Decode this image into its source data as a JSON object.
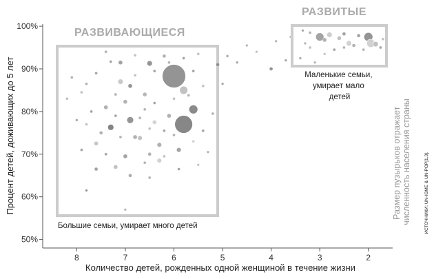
{
  "chart_data": {
    "type": "scatter",
    "xlabel": "Количество детей, рожденных одной женщиной в течение жизни",
    "ylabel": "Процент детей, доживающих до 5 лет",
    "xlim": [
      8.7,
      1.5
    ],
    "ylim": [
      48,
      100.5
    ],
    "x_ticks": [
      "8",
      "7",
      "6",
      "5",
      "4",
      "3",
      "2"
    ],
    "y_ticks": [
      "50%",
      "60%",
      "70%",
      "80%",
      "90%",
      "100%"
    ],
    "annotations": {
      "developing_title": "РАЗВИВАЮЩИЕСЯ",
      "developed_title": "РАЗВИТЫЕ",
      "developing_note": "Большие семьи, умирает много детей",
      "developed_note": [
        "Маленькие семьи,",
        "умирает мало",
        "детей"
      ],
      "bubble_size_note": [
        "Размер пузырьков отражает",
        "численность населения страны"
      ],
      "source": "ИСТОЧНИКИ: UN-IGME & UN-POP[1,3]."
    },
    "regions": [
      {
        "name": "developing",
        "x": [
          8.3,
          4.95
        ],
        "y": [
          55,
          95
        ]
      },
      {
        "name": "developed",
        "x": [
          3.5,
          1.6
        ],
        "y": [
          90,
          99.5
        ]
      }
    ],
    "points": [
      {
        "x": 6.0,
        "y": 88.3,
        "size": 17,
        "shade": "#888888"
      },
      {
        "x": 5.8,
        "y": 77.0,
        "size": 13,
        "shade": "#7a7a7a"
      },
      {
        "x": 5.6,
        "y": 80.5,
        "size": 6.5,
        "shade": "#7d7d7d"
      },
      {
        "x": 5.8,
        "y": 85.0,
        "size": 6,
        "shade": "#bbbbbb"
      },
      {
        "x": 6.9,
        "y": 78.0,
        "size": 5,
        "shade": "#8a8a8a"
      },
      {
        "x": 7.3,
        "y": 76.3,
        "size": 4.5,
        "shade": "#777777"
      },
      {
        "x": 6.5,
        "y": 91.3,
        "size": 4,
        "shade": "#888888"
      },
      {
        "x": 7.1,
        "y": 87.0,
        "size": 4,
        "shade": "#c4c4c4"
      },
      {
        "x": 6.3,
        "y": 72.2,
        "size": 3.5,
        "shade": "#aaaaaa"
      },
      {
        "x": 6.7,
        "y": 73.8,
        "size": 3.5,
        "shade": "#bdbdbd"
      },
      {
        "x": 5.9,
        "y": 71.0,
        "size": 3.5,
        "shade": "#9a9a9a"
      },
      {
        "x": 6.3,
        "y": 68.5,
        "size": 3.5,
        "shade": "#cccccc"
      },
      {
        "x": 7.1,
        "y": 91.5,
        "size": 3,
        "shade": "#999999"
      },
      {
        "x": 6.9,
        "y": 86.0,
        "size": 3,
        "shade": "#888888"
      },
      {
        "x": 7.0,
        "y": 82.3,
        "size": 3,
        "shade": "#aaaaaa"
      },
      {
        "x": 7.4,
        "y": 81.0,
        "size": 3,
        "shade": "#aaaaaa"
      },
      {
        "x": 6.6,
        "y": 84.0,
        "size": 3,
        "shade": "#b0b0b0"
      },
      {
        "x": 6.1,
        "y": 79.0,
        "size": 3,
        "shade": "#a8a8a8"
      },
      {
        "x": 6.4,
        "y": 77.5,
        "size": 3,
        "shade": "#cfcfcf"
      },
      {
        "x": 6.8,
        "y": 74.0,
        "size": 3,
        "shade": "#aaaaaa"
      },
      {
        "x": 7.6,
        "y": 72.5,
        "size": 3,
        "shade": "#c0c0c0"
      },
      {
        "x": 7.0,
        "y": 69.5,
        "size": 3,
        "shade": "#999999"
      },
      {
        "x": 6.5,
        "y": 70.0,
        "size": 2.5,
        "shade": "#aaaaaa"
      },
      {
        "x": 7.2,
        "y": 67.0,
        "size": 3,
        "shade": "#bbbbbb"
      },
      {
        "x": 6.9,
        "y": 65.0,
        "size": 2.5,
        "shade": "#a5a5a5"
      },
      {
        "x": 7.5,
        "y": 75.0,
        "size": 2.5,
        "shade": "#aaaaaa"
      },
      {
        "x": 5.1,
        "y": 91.0,
        "size": 2.5,
        "shade": "#888888"
      },
      {
        "x": 6.2,
        "y": 93.0,
        "size": 2.5,
        "shade": "#aaaaaa"
      },
      {
        "x": 5.5,
        "y": 93.5,
        "size": 2,
        "shade": "#bbbbbb"
      },
      {
        "x": 7.6,
        "y": 66.5,
        "size": 2.5,
        "shade": "#999999"
      },
      {
        "x": 7.8,
        "y": 61.5,
        "size": 1.8,
        "shade": "#888888"
      },
      {
        "x": 7.0,
        "y": 57.0,
        "size": 1.8,
        "shade": "#aaaaaa"
      },
      {
        "x": 7.3,
        "y": 91.7,
        "size": 2,
        "shade": "#999999"
      },
      {
        "x": 7.4,
        "y": 94.0,
        "size": 2,
        "shade": "#aaaaaa"
      },
      {
        "x": 6.8,
        "y": 93.2,
        "size": 2,
        "shade": "#bbbbbb"
      },
      {
        "x": 7.6,
        "y": 89.0,
        "size": 2,
        "shade": "#999999"
      },
      {
        "x": 7.8,
        "y": 86.5,
        "size": 2,
        "shade": "#aaaaaa"
      },
      {
        "x": 7.9,
        "y": 84.5,
        "size": 2,
        "shade": "#bbbbbb"
      },
      {
        "x": 7.7,
        "y": 80.0,
        "size": 2,
        "shade": "#999999"
      },
      {
        "x": 6.6,
        "y": 80.5,
        "size": 2,
        "shade": "#aaaaaa"
      },
      {
        "x": 6.4,
        "y": 82.0,
        "size": 2,
        "shade": "#999999"
      },
      {
        "x": 6.0,
        "y": 83.0,
        "size": 2,
        "shade": "#bbbbbb"
      },
      {
        "x": 5.7,
        "y": 83.8,
        "size": 2,
        "shade": "#aaaaaa"
      },
      {
        "x": 5.6,
        "y": 89.5,
        "size": 2,
        "shade": "#999999"
      },
      {
        "x": 5.4,
        "y": 86.0,
        "size": 2,
        "shade": "#bbbbbb"
      },
      {
        "x": 5.2,
        "y": 79.5,
        "size": 2,
        "shade": "#aaaaaa"
      },
      {
        "x": 5.4,
        "y": 75.5,
        "size": 2,
        "shade": "#999999"
      },
      {
        "x": 5.6,
        "y": 73.0,
        "size": 2,
        "shade": "#cccccc"
      },
      {
        "x": 6.0,
        "y": 74.5,
        "size": 2,
        "shade": "#aaaaaa"
      },
      {
        "x": 6.2,
        "y": 75.5,
        "size": 2,
        "shade": "#999999"
      },
      {
        "x": 6.5,
        "y": 76.0,
        "size": 2,
        "shade": "#bbbbbb"
      },
      {
        "x": 6.7,
        "y": 78.5,
        "size": 2,
        "shade": "#aaaaaa"
      },
      {
        "x": 7.2,
        "y": 79.0,
        "size": 2,
        "shade": "#999999"
      },
      {
        "x": 7.2,
        "y": 84.0,
        "size": 2,
        "shade": "#aaaaaa"
      },
      {
        "x": 6.8,
        "y": 88.5,
        "size": 2,
        "shade": "#bbbbbb"
      },
      {
        "x": 6.4,
        "y": 89.5,
        "size": 2,
        "shade": "#999999"
      },
      {
        "x": 6.1,
        "y": 91.5,
        "size": 2,
        "shade": "#aaaaaa"
      },
      {
        "x": 5.8,
        "y": 92.5,
        "size": 2,
        "shade": "#999999"
      },
      {
        "x": 7.1,
        "y": 74.0,
        "size": 2,
        "shade": "#aaaaaa"
      },
      {
        "x": 7.8,
        "y": 77.0,
        "size": 2,
        "shade": "#bbbbbb"
      },
      {
        "x": 7.4,
        "y": 70.0,
        "size": 2,
        "shade": "#999999"
      },
      {
        "x": 6.6,
        "y": 68.0,
        "size": 2,
        "shade": "#aaaaaa"
      },
      {
        "x": 6.2,
        "y": 69.5,
        "size": 2,
        "shade": "#bbbbbb"
      },
      {
        "x": 5.9,
        "y": 66.5,
        "size": 2,
        "shade": "#999999"
      },
      {
        "x": 6.5,
        "y": 64.5,
        "size": 2,
        "shade": "#aaaaaa"
      },
      {
        "x": 7.9,
        "y": 71.0,
        "size": 2,
        "shade": "#999999"
      },
      {
        "x": 8.2,
        "y": 83.0,
        "size": 2,
        "shade": "#bbbbbb"
      },
      {
        "x": 8.1,
        "y": 88.0,
        "size": 2,
        "shade": "#aaaaaa"
      },
      {
        "x": 8.0,
        "y": 78.0,
        "size": 1.8,
        "shade": "#999999"
      },
      {
        "x": 5.3,
        "y": 70.5,
        "size": 1.8,
        "shade": "#aaaaaa"
      },
      {
        "x": 5.5,
        "y": 67.5,
        "size": 1.8,
        "shade": "#bbbbbb"
      },
      {
        "x": 5.0,
        "y": 86.5,
        "size": 1.8,
        "shade": "#999999"
      },
      {
        "x": 4.9,
        "y": 93.0,
        "size": 2,
        "shade": "#aaaaaa"
      },
      {
        "x": 4.7,
        "y": 91.5,
        "size": 1.8,
        "shade": "#999999"
      },
      {
        "x": 4.5,
        "y": 95.5,
        "size": 1.8,
        "shade": "#aaaaaa"
      },
      {
        "x": 4.3,
        "y": 94.0,
        "size": 1.8,
        "shade": "#bbbbbb"
      },
      {
        "x": 4.0,
        "y": 90.0,
        "size": 2.5,
        "shade": "#888888"
      },
      {
        "x": 3.9,
        "y": 96.5,
        "size": 1.8,
        "shade": "#aaaaaa"
      },
      {
        "x": 3.7,
        "y": 92.0,
        "size": 1.8,
        "shade": "#999999"
      },
      {
        "x": 3.6,
        "y": 97.5,
        "size": 1.8,
        "shade": "#bbbbbb"
      },
      {
        "x": 3.3,
        "y": 96.0,
        "size": 1.8,
        "shade": "#aaaaaa"
      },
      {
        "x": 3.4,
        "y": 92.5,
        "size": 1.8,
        "shade": "#999999"
      },
      {
        "x": 3.1,
        "y": 91.5,
        "size": 1.8,
        "shade": "#aaaaaa"
      },
      {
        "x": 3.0,
        "y": 97.5,
        "size": 6,
        "shade": "#999999"
      },
      {
        "x": 2.8,
        "y": 98.0,
        "size": 4,
        "shade": "#c8c8c8"
      },
      {
        "x": 2.9,
        "y": 96.8,
        "size": 3,
        "shade": "#aaaaaa"
      },
      {
        "x": 2.6,
        "y": 97.2,
        "size": 3,
        "shade": "#bbbbbb"
      },
      {
        "x": 2.5,
        "y": 98.2,
        "size": 2.5,
        "shade": "#999999"
      },
      {
        "x": 2.4,
        "y": 96.0,
        "size": 4,
        "shade": "#cccccc"
      },
      {
        "x": 2.0,
        "y": 97.5,
        "size": 6.5,
        "shade": "#888888"
      },
      {
        "x": 1.95,
        "y": 96.0,
        "size": 6,
        "shade": "#cccccc"
      },
      {
        "x": 1.85,
        "y": 95.8,
        "size": 4,
        "shade": "#bbbbbb"
      },
      {
        "x": 2.3,
        "y": 95.5,
        "size": 2.5,
        "shade": "#aaaaaa"
      },
      {
        "x": 2.2,
        "y": 97.8,
        "size": 2.5,
        "shade": "#999999"
      },
      {
        "x": 3.2,
        "y": 98.5,
        "size": 2,
        "shade": "#aaaaaa"
      },
      {
        "x": 3.2,
        "y": 95.0,
        "size": 2,
        "shade": "#bbbbbb"
      },
      {
        "x": 2.7,
        "y": 94.5,
        "size": 2,
        "shade": "#999999"
      },
      {
        "x": 2.5,
        "y": 95.0,
        "size": 2,
        "shade": "#aaaaaa"
      },
      {
        "x": 1.7,
        "y": 97.0,
        "size": 2,
        "shade": "#bbbbbb"
      },
      {
        "x": 1.75,
        "y": 95.0,
        "size": 2,
        "shade": "#999999"
      },
      {
        "x": 2.1,
        "y": 94.5,
        "size": 2,
        "shade": "#aaaaaa"
      },
      {
        "x": 2.9,
        "y": 93.5,
        "size": 1.8,
        "shade": "#bbbbbb"
      },
      {
        "x": 3.35,
        "y": 99.0,
        "size": 1.8,
        "shade": "#999999"
      }
    ]
  }
}
